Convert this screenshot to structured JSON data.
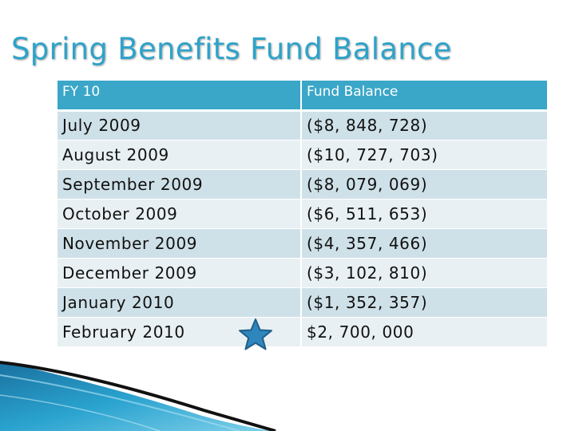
{
  "slide": {
    "title": "Spring Benefits Fund Balance"
  },
  "table": {
    "headers": [
      "FY 10",
      "Fund Balance"
    ],
    "rows": [
      {
        "month": "July 2009",
        "balance": "($8, 848, 728)"
      },
      {
        "month": "August 2009",
        "balance": "($10, 727, 703)"
      },
      {
        "month": "September 2009",
        "balance": "($8, 079, 069)"
      },
      {
        "month": "October 2009",
        "balance": "($6, 511, 653)"
      },
      {
        "month": "November 2009",
        "balance": "($4, 357, 466)"
      },
      {
        "month": "December 2009",
        "balance": "($3, 102, 810)"
      },
      {
        "month": "January 2010",
        "balance": "($1, 352, 357)"
      },
      {
        "month": "February 2010",
        "balance": "$2, 700, 000",
        "marker": "star-icon"
      }
    ]
  },
  "colors": {
    "title": "#2ea3c9",
    "header_bg": "#3aa6c8",
    "row_odd": "#cfe1e8",
    "row_even": "#e8f0f3",
    "star": "#2f86bd"
  }
}
